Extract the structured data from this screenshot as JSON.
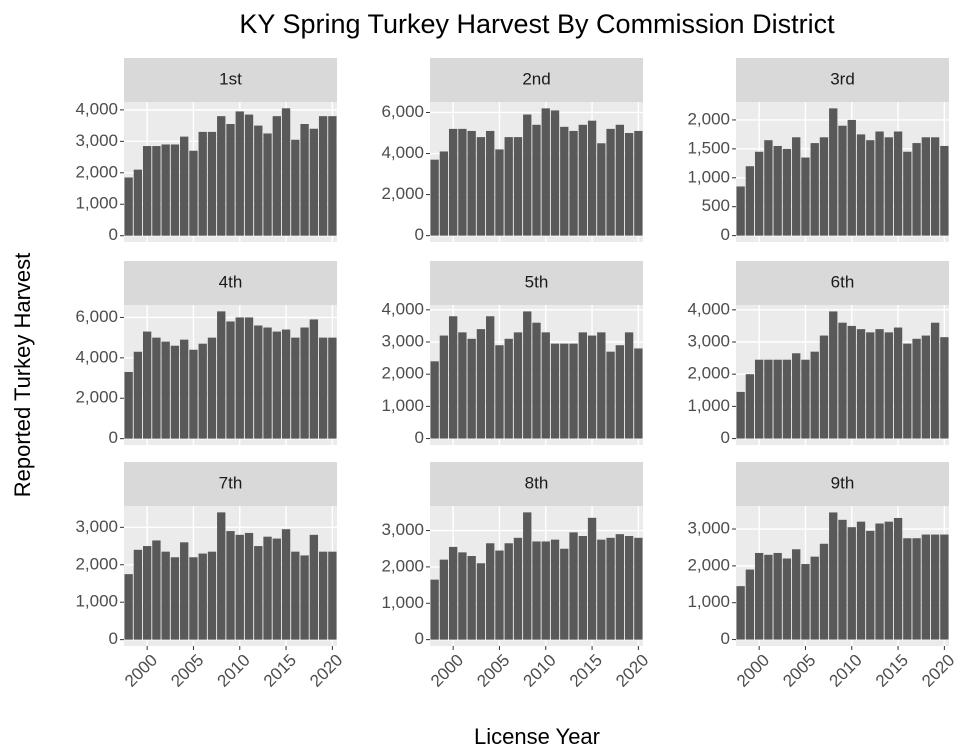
{
  "title": "KY Spring Turkey Harvest By Commission District",
  "x_label": "License Year",
  "y_label": "Reported Turkey Harvest",
  "chart_data": [
    {
      "type": "bar",
      "title": "1st",
      "color": "#595959",
      "x": [
        1998,
        1999,
        2000,
        2001,
        2002,
        2003,
        2004,
        2005,
        2006,
        2007,
        2008,
        2009,
        2010,
        2011,
        2012,
        2013,
        2014,
        2015,
        2016,
        2017,
        2018,
        2019,
        2020
      ],
      "values": [
        1850,
        2100,
        2850,
        2850,
        2900,
        2900,
        3150,
        2700,
        3300,
        3300,
        3800,
        3550,
        3950,
        3850,
        3500,
        3250,
        3800,
        4050,
        3050,
        3550,
        3400,
        3800,
        3800
      ],
      "xlim": [
        1997.5,
        2020.5
      ],
      "xticks": [
        2000,
        2005,
        2010,
        2015,
        2020
      ],
      "ylim": [
        -200,
        4250
      ],
      "yticks": [
        0,
        {
          "value": 1000,
          "label": "1,000"
        },
        {
          "value": 2000,
          "label": "2,000"
        },
        {
          "value": 3000,
          "label": "3,000"
        },
        {
          "value": 4000,
          "label": "4,000"
        }
      ]
    },
    {
      "type": "bar",
      "title": "2nd",
      "color": "#595959",
      "x": [
        1998,
        1999,
        2000,
        2001,
        2002,
        2003,
        2004,
        2005,
        2006,
        2007,
        2008,
        2009,
        2010,
        2011,
        2012,
        2013,
        2014,
        2015,
        2016,
        2017,
        2018,
        2019,
        2020
      ],
      "values": [
        3700,
        4100,
        5200,
        5200,
        5100,
        4800,
        5100,
        4200,
        4800,
        4800,
        5900,
        5400,
        6200,
        6100,
        5300,
        5100,
        5400,
        5600,
        4500,
        5200,
        5400,
        5000,
        5100
      ],
      "xlim": [
        1997.5,
        2020.5
      ],
      "xticks": [
        2000,
        2005,
        2010,
        2015,
        2020
      ],
      "ylim": [
        -310,
        6510
      ],
      "yticks": [
        0,
        {
          "value": 2000,
          "label": "2,000"
        },
        {
          "value": 4000,
          "label": "4,000"
        },
        {
          "value": 6000,
          "label": "6,000"
        }
      ]
    },
    {
      "type": "bar",
      "title": "3rd",
      "color": "#595959",
      "x": [
        1998,
        1999,
        2000,
        2001,
        2002,
        2003,
        2004,
        2005,
        2006,
        2007,
        2008,
        2009,
        2010,
        2011,
        2012,
        2013,
        2014,
        2015,
        2016,
        2017,
        2018,
        2019,
        2020
      ],
      "values": [
        850,
        1200,
        1450,
        1650,
        1550,
        1500,
        1700,
        1350,
        1600,
        1700,
        2200,
        1900,
        2000,
        1750,
        1650,
        1800,
        1700,
        1800,
        1450,
        1600,
        1700,
        1700,
        1550
      ],
      "xlim": [
        1997.5,
        2020.5
      ],
      "xticks": [
        2000,
        2005,
        2010,
        2015,
        2020
      ],
      "ylim": [
        -110,
        2310
      ],
      "yticks": [
        0,
        500,
        {
          "value": 1000,
          "label": "1,000"
        },
        {
          "value": 1500,
          "label": "1,500"
        },
        {
          "value": 2000,
          "label": "2,000"
        }
      ]
    },
    {
      "type": "bar",
      "title": "4th",
      "color": "#595959",
      "x": [
        1998,
        1999,
        2000,
        2001,
        2002,
        2003,
        2004,
        2005,
        2006,
        2007,
        2008,
        2009,
        2010,
        2011,
        2012,
        2013,
        2014,
        2015,
        2016,
        2017,
        2018,
        2019,
        2020
      ],
      "values": [
        3300,
        4300,
        5300,
        5000,
        4800,
        4600,
        4900,
        4400,
        4700,
        5000,
        6300,
        5800,
        6000,
        6000,
        5600,
        5500,
        5300,
        5400,
        5000,
        5500,
        5900,
        5000,
        5000
      ],
      "xlim": [
        1997.5,
        2020.5
      ],
      "xticks": [
        2000,
        2005,
        2010,
        2015,
        2020
      ],
      "ylim": [
        -315,
        6615
      ],
      "yticks": [
        0,
        {
          "value": 2000,
          "label": "2,000"
        },
        {
          "value": 4000,
          "label": "4,000"
        },
        {
          "value": 6000,
          "label": "6,000"
        }
      ]
    },
    {
      "type": "bar",
      "title": "5th",
      "color": "#595959",
      "x": [
        1998,
        1999,
        2000,
        2001,
        2002,
        2003,
        2004,
        2005,
        2006,
        2007,
        2008,
        2009,
        2010,
        2011,
        2012,
        2013,
        2014,
        2015,
        2016,
        2017,
        2018,
        2019,
        2020
      ],
      "values": [
        2400,
        3200,
        3800,
        3300,
        3100,
        3400,
        3800,
        2900,
        3100,
        3300,
        3950,
        3600,
        3300,
        2950,
        2950,
        2950,
        3300,
        3200,
        3300,
        2700,
        2900,
        3300,
        2800
      ],
      "xlim": [
        1997.5,
        2020.5
      ],
      "xticks": [
        2000,
        2005,
        2010,
        2015,
        2020
      ],
      "ylim": [
        -200,
        4150
      ],
      "yticks": [
        0,
        {
          "value": 1000,
          "label": "1,000"
        },
        {
          "value": 2000,
          "label": "2,000"
        },
        {
          "value": 3000,
          "label": "3,000"
        },
        {
          "value": 4000,
          "label": "4,000"
        }
      ]
    },
    {
      "type": "bar",
      "title": "6th",
      "color": "#595959",
      "x": [
        1998,
        1999,
        2000,
        2001,
        2002,
        2003,
        2004,
        2005,
        2006,
        2007,
        2008,
        2009,
        2010,
        2011,
        2012,
        2013,
        2014,
        2015,
        2016,
        2017,
        2018,
        2019,
        2020
      ],
      "values": [
        1450,
        2000,
        2450,
        2450,
        2450,
        2450,
        2650,
        2450,
        2700,
        3200,
        3950,
        3600,
        3500,
        3400,
        3300,
        3400,
        3300,
        3450,
        2950,
        3100,
        3200,
        3600,
        3150
      ],
      "xlim": [
        1997.5,
        2020.5
      ],
      "xticks": [
        2000,
        2005,
        2010,
        2015,
        2020
      ],
      "ylim": [
        -200,
        4150
      ],
      "yticks": [
        0,
        {
          "value": 1000,
          "label": "1,000"
        },
        {
          "value": 2000,
          "label": "2,000"
        },
        {
          "value": 3000,
          "label": "3,000"
        },
        {
          "value": 4000,
          "label": "4,000"
        }
      ]
    },
    {
      "type": "bar",
      "title": "7th",
      "color": "#595959",
      "x": [
        1998,
        1999,
        2000,
        2001,
        2002,
        2003,
        2004,
        2005,
        2006,
        2007,
        2008,
        2009,
        2010,
        2011,
        2012,
        2013,
        2014,
        2015,
        2016,
        2017,
        2018,
        2019,
        2020
      ],
      "values": [
        1750,
        2400,
        2500,
        2650,
        2350,
        2200,
        2600,
        2200,
        2300,
        2350,
        3400,
        2900,
        2800,
        2850,
        2500,
        2750,
        2700,
        2950,
        2350,
        2250,
        2800,
        2350,
        2350
      ],
      "xlim": [
        1997.5,
        2020.5
      ],
      "xticks": [
        2000,
        2005,
        2010,
        2015,
        2020
      ],
      "ylim": [
        -170,
        3570
      ],
      "yticks": [
        0,
        {
          "value": 1000,
          "label": "1,000"
        },
        {
          "value": 2000,
          "label": "2,000"
        },
        {
          "value": 3000,
          "label": "3,000"
        }
      ]
    },
    {
      "type": "bar",
      "title": "8th",
      "color": "#595959",
      "x": [
        1998,
        1999,
        2000,
        2001,
        2002,
        2003,
        2004,
        2005,
        2006,
        2007,
        2008,
        2009,
        2010,
        2011,
        2012,
        2013,
        2014,
        2015,
        2016,
        2017,
        2018,
        2019,
        2020
      ],
      "values": [
        1650,
        2200,
        2550,
        2400,
        2300,
        2100,
        2650,
        2450,
        2650,
        2800,
        3500,
        2700,
        2700,
        2750,
        2500,
        2950,
        2850,
        3350,
        2750,
        2800,
        2900,
        2850,
        2800
      ],
      "xlim": [
        1997.5,
        2020.5
      ],
      "xticks": [
        2000,
        2005,
        2010,
        2015,
        2020
      ],
      "ylim": [
        -175,
        3675
      ],
      "yticks": [
        0,
        {
          "value": 1000,
          "label": "1,000"
        },
        {
          "value": 2000,
          "label": "2,000"
        },
        {
          "value": 3000,
          "label": "3,000"
        }
      ]
    },
    {
      "type": "bar",
      "title": "9th",
      "color": "#595959",
      "x": [
        1998,
        1999,
        2000,
        2001,
        2002,
        2003,
        2004,
        2005,
        2006,
        2007,
        2008,
        2009,
        2010,
        2011,
        2012,
        2013,
        2014,
        2015,
        2016,
        2017,
        2018,
        2019,
        2020
      ],
      "values": [
        1450,
        1900,
        2350,
        2300,
        2350,
        2200,
        2450,
        2050,
        2250,
        2600,
        3450,
        3250,
        3050,
        3200,
        2950,
        3150,
        3200,
        3300,
        2750,
        2750,
        2850,
        2850,
        2850
      ],
      "xlim": [
        1997.5,
        2020.5
      ],
      "xticks": [
        2000,
        2005,
        2010,
        2015,
        2020
      ],
      "ylim": [
        -175,
        3625
      ],
      "yticks": [
        0,
        {
          "value": 1000,
          "label": "1,000"
        },
        {
          "value": 2000,
          "label": "2,000"
        },
        {
          "value": 3000,
          "label": "3,000"
        }
      ]
    }
  ]
}
